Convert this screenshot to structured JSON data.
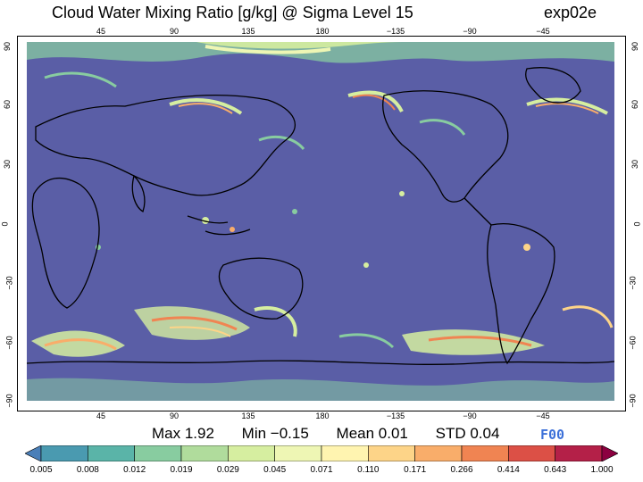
{
  "header": {
    "title": "Cloud Water Mixing Ratio [g/kg]  @ Sigma Level 15",
    "run": "exp02e"
  },
  "map": {
    "lon_ticks": [
      "45",
      "90",
      "135",
      "180",
      "−135",
      "−90",
      "−45"
    ],
    "lat_ticks_left": [
      "90",
      "60",
      "30",
      "0",
      "−30",
      "−60",
      "−90"
    ],
    "lat_ticks_right": [
      "90",
      "60",
      "30",
      "0",
      "−30",
      "−60",
      "−90"
    ],
    "background_color": "#5a5ea6"
  },
  "stats": {
    "max": "Max 1.92",
    "min": "Min −0.15",
    "mean": "Mean 0.01",
    "std": "STD 0.04"
  },
  "forecast_hour": "F00",
  "colorbar": {
    "labels": [
      "0.005",
      "0.008",
      "0.012",
      "0.019",
      "0.029",
      "0.045",
      "0.071",
      "0.110",
      "0.171",
      "0.266",
      "0.414",
      "0.643",
      "1.000"
    ],
    "colors": [
      "#4a7fb8",
      "#4a9ab0",
      "#5ab4a8",
      "#88cca0",
      "#b0dc9c",
      "#d6eea0",
      "#eef6b4",
      "#fff4b0",
      "#fdd488",
      "#f9ad6a",
      "#f08452",
      "#dc5046",
      "#b42048",
      "#8c0040"
    ]
  }
}
